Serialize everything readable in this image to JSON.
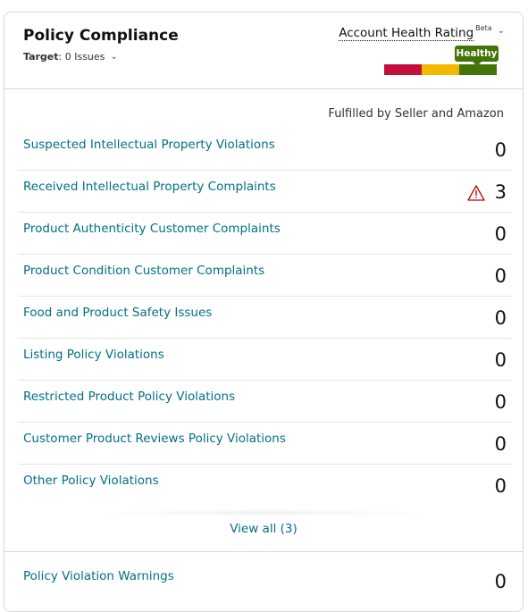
{
  "header": {
    "title": "Policy Compliance",
    "target_label": "Target",
    "target_value": ": 0 Issues",
    "rating_label": "Account Health Rating",
    "beta": "Beta",
    "health_status": "Healthy",
    "bar_colors": [
      "#c40e3b",
      "#f3b800",
      "#417505"
    ]
  },
  "fulfilled_label": "Fulfilled by Seller and Amazon",
  "rows": [
    {
      "label": "Suspected Intellectual Property Violations",
      "value": "0",
      "warning": false
    },
    {
      "label": "Received Intellectual Property Complaints",
      "value": "3",
      "warning": true
    },
    {
      "label": "Product Authenticity Customer Complaints",
      "value": "0",
      "warning": false
    },
    {
      "label": "Product Condition Customer Complaints",
      "value": "0",
      "warning": false
    },
    {
      "label": "Food and Product Safety Issues",
      "value": "0",
      "warning": false
    },
    {
      "label": "Listing Policy Violations",
      "value": "0",
      "warning": false
    },
    {
      "label": "Restricted Product Policy Violations",
      "value": "0",
      "warning": false
    },
    {
      "label": "Customer Product Reviews Policy Violations",
      "value": "0",
      "warning": false
    },
    {
      "label": "Other Policy Violations",
      "value": "0",
      "warning": false
    }
  ],
  "view_all": "View all (3)",
  "warnings": {
    "label": "Policy Violation Warnings",
    "value": "0"
  }
}
